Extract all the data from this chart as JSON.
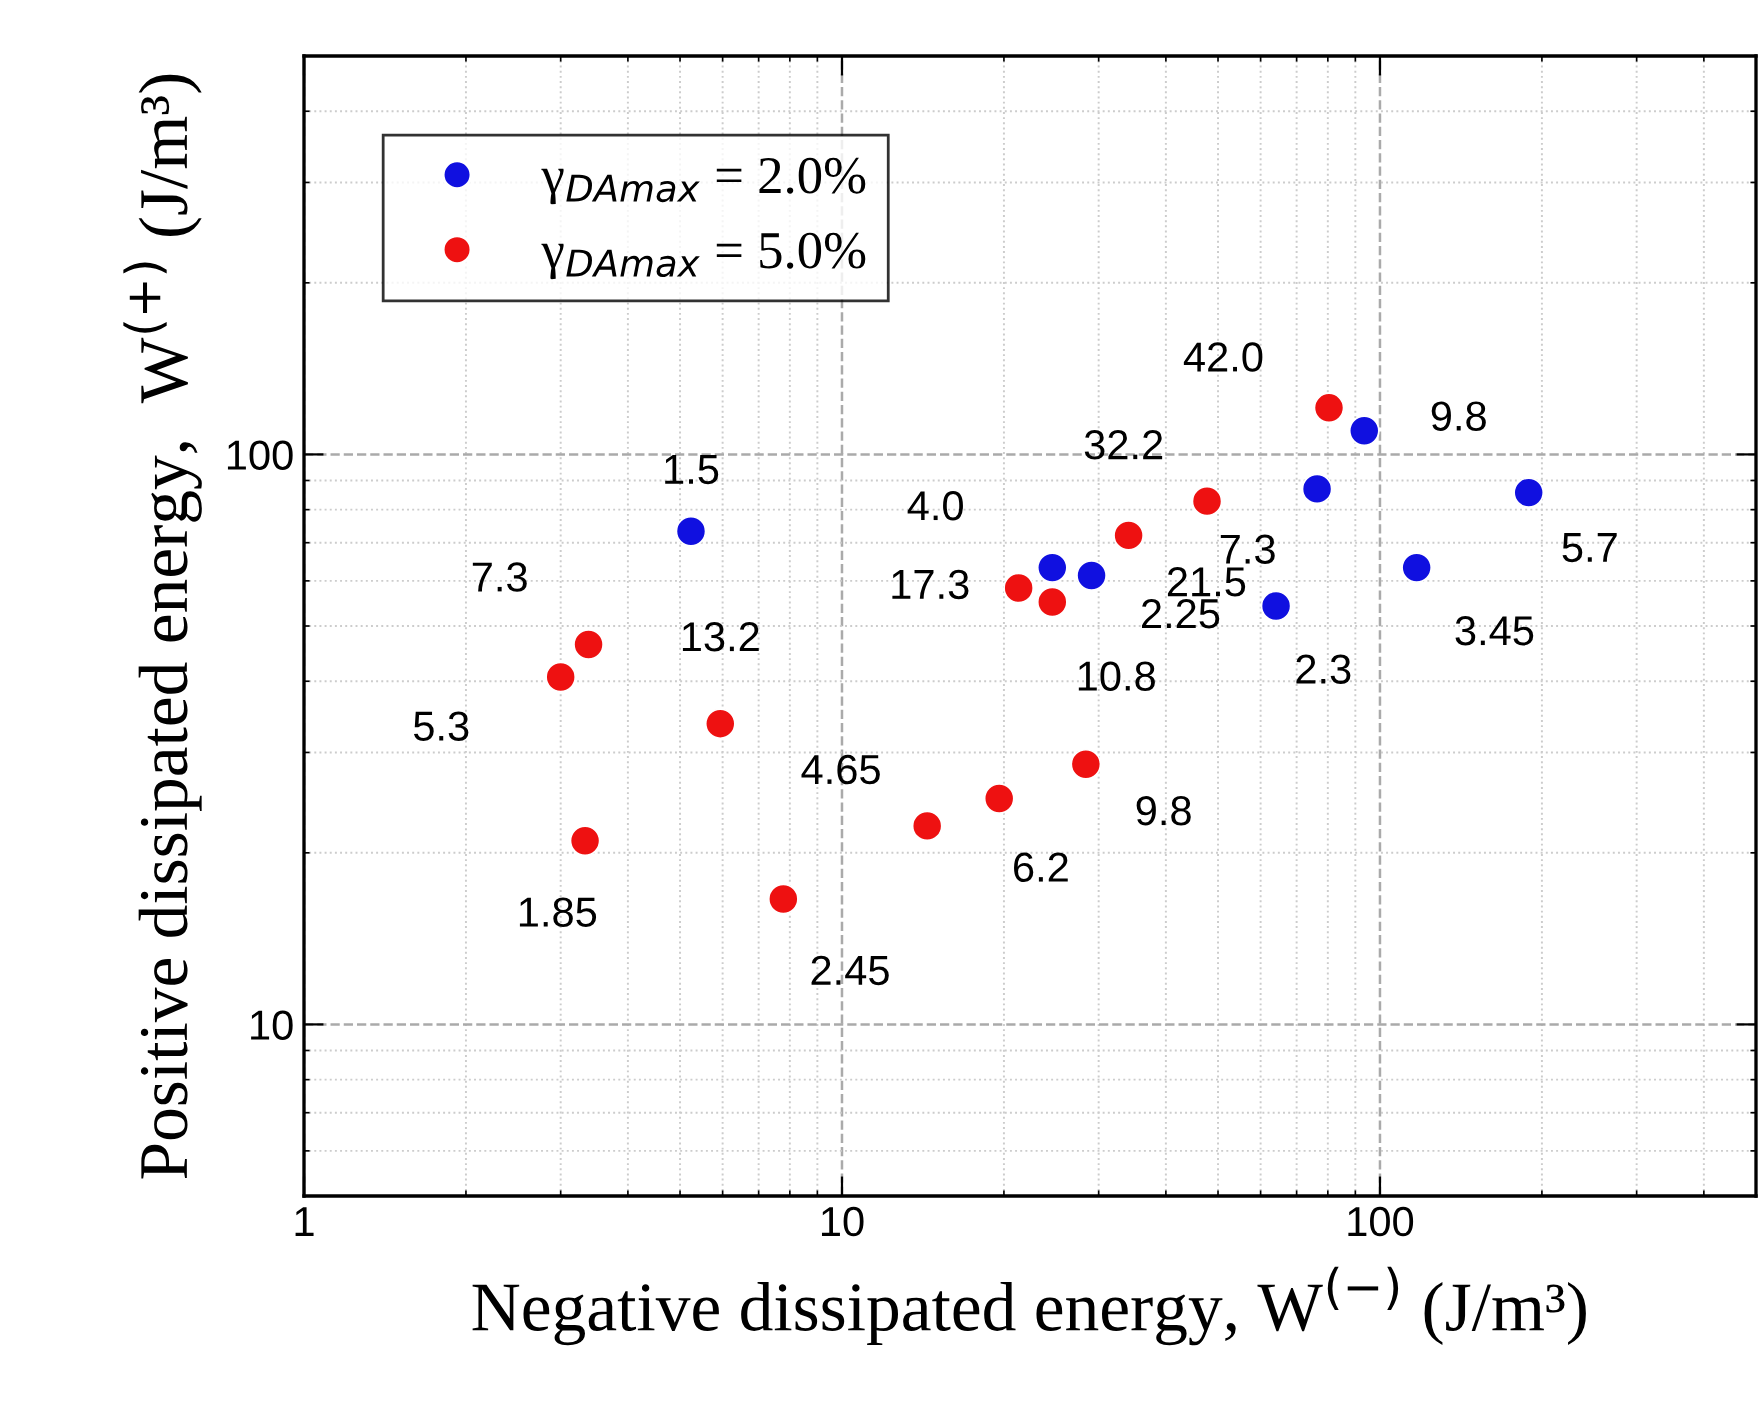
{
  "chart_data": {
    "type": "scatter",
    "xlabel": "Negative dissipated energy, W$^{(−)}$ (J/m³)",
    "ylabel": "Positive dissipated energy,  W$^{(+)}$ (J/m³)",
    "log": "xy",
    "xlim": [
      1,
      500
    ],
    "ylim": [
      5,
      500
    ],
    "xticks": [
      1,
      10,
      100
    ],
    "yticks": [
      10,
      100
    ],
    "grid": true,
    "legend": "top left",
    "marker": "circle",
    "series": [
      {
        "name": "γ$_{DAmax}$ = 2.0%",
        "color": "#1010e0",
        "x": [
          5.24,
          24.6,
          29.1,
          64.1,
          76.4,
          93.5,
          117,
          189
        ],
        "values": [
          73.3,
          63.3,
          61.3,
          54.2,
          87,
          110,
          63.3,
          85.7
        ]
      },
      {
        "name": "γ$_{DAmax}$ = 5.0%",
        "color": "#ee1111",
        "x": [
          3.0,
          3.38,
          3.33,
          5.94,
          7.78,
          14.4,
          19.6,
          21.3,
          24.6,
          28.4,
          34.1,
          47.7,
          80.4
        ],
        "values": [
          40.7,
          46.4,
          21.0,
          33.7,
          16.6,
          22.3,
          24.9,
          58.3,
          55.1,
          28.6,
          72.1,
          82.8,
          120.7
        ]
      }
    ],
    "annotations": [
      {
        "text": "1.5",
        "x": 5.24,
        "y": 73.3
      },
      {
        "text": "4.0",
        "x": 24.6,
        "y": 63.3
      },
      {
        "text": "2.25",
        "x": 29.1,
        "y": 61.3
      },
      {
        "text": "2.3",
        "x": 64.1,
        "y": 54.2
      },
      {
        "text": "7.3",
        "x": 76.4,
        "y": 87
      },
      {
        "text": "9.8",
        "x": 93.5,
        "y": 110
      },
      {
        "text": "3.45",
        "x": 117,
        "y": 63.3
      },
      {
        "text": "5.7",
        "x": 189,
        "y": 85.7
      },
      {
        "text": "5.3",
        "x": 3.0,
        "y": 40.7
      },
      {
        "text": "7.3",
        "x": 3.38,
        "y": 46.4
      },
      {
        "text": "1.85",
        "x": 3.33,
        "y": 21.0
      },
      {
        "text": "13.2",
        "x": 5.94,
        "y": 33.7
      },
      {
        "text": "2.45",
        "x": 7.78,
        "y": 16.6
      },
      {
        "text": "4.65",
        "x": 14.4,
        "y": 22.3
      },
      {
        "text": "6.2",
        "x": 19.6,
        "y": 24.9
      },
      {
        "text": "17.3",
        "x": 21.3,
        "y": 58.3
      },
      {
        "text": "10.8",
        "x": 24.6,
        "y": 55.1
      },
      {
        "text": "9.8",
        "x": 28.4,
        "y": 28.6
      },
      {
        "text": "21.5",
        "x": 34.1,
        "y": 72.1
      },
      {
        "text": "32.2",
        "x": 47.7,
        "y": 82.8
      },
      {
        "text": "42.0",
        "x": 80.4,
        "y": 120.7
      }
    ]
  }
}
